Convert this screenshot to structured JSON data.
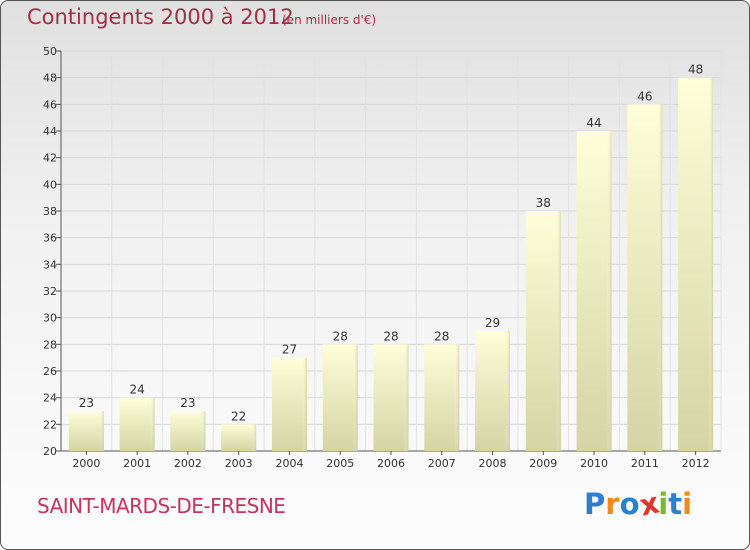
{
  "header": {
    "title": "Contingents 2000 à 2012",
    "subtitle": "(en milliers d'€)"
  },
  "footer": {
    "commune": "SAINT-MARDS-DE-FRESNE",
    "logo_text": "Proxiti",
    "logo_colors": [
      "#2a7fd0",
      "#f08a1e",
      "#2a7fd0",
      "#e0342c",
      "#7ab82e",
      "#2a7fd0",
      "#f08a1e"
    ]
  },
  "chart_data": {
    "type": "bar",
    "title": "Contingents 2000 à 2012",
    "subtitle": "(en milliers d'€)",
    "categories": [
      "2000",
      "2001",
      "2002",
      "2003",
      "2004",
      "2005",
      "2006",
      "2007",
      "2008",
      "2009",
      "2010",
      "2011",
      "2012"
    ],
    "values": [
      23,
      24,
      23,
      22,
      27,
      28,
      28,
      28,
      29,
      38,
      44,
      46,
      48
    ],
    "ylim": [
      20,
      50
    ],
    "yticks": [
      20,
      22,
      24,
      26,
      28,
      30,
      32,
      34,
      36,
      38,
      40,
      42,
      44,
      46,
      48,
      50
    ],
    "grid": true,
    "bar_color": "#f8f8c8"
  }
}
